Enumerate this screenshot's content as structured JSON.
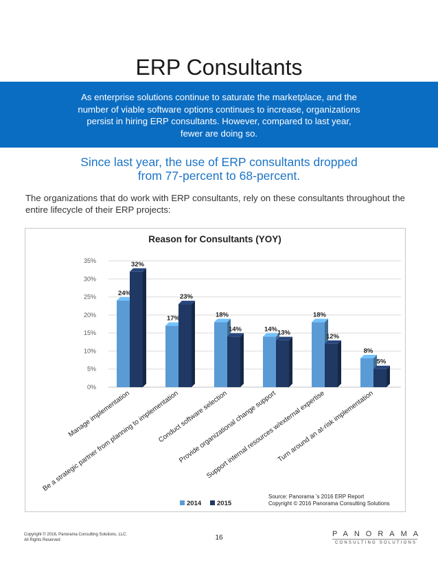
{
  "page": {
    "title": "ERP Consultants",
    "banner_lines": [
      "As enterprise solutions continue to saturate the marketplace, and the",
      "number of viable software options continues to increase, organizations",
      "persist in hiring ERP consultants. However, compared to last year,",
      "fewer are doing so."
    ],
    "subhead_lines": [
      "Since last year, the use of ERP consultants dropped",
      "from 77-percent to 68-percent."
    ],
    "paragraph": "The organizations that do work with ERP consultants, rely on these consultants throughout the entire lifecycle of their ERP projects:"
  },
  "chart_data": {
    "type": "bar",
    "title": "Reason for Consultants (YOY)",
    "categories": [
      "Manage implementation",
      "Be a strategic partner from planning to implementation",
      "Conduct software selection",
      "Provide organizational change support",
      "Support internal resources w/external expertise",
      "Turn around an at-risk implementation"
    ],
    "series": [
      {
        "name": "2014",
        "values": [
          24,
          17,
          18,
          14,
          18,
          8
        ],
        "color": "#5b9bd5"
      },
      {
        "name": "2015",
        "values": [
          32,
          23,
          14,
          13,
          12,
          5
        ],
        "color": "#1f3864"
      }
    ],
    "ylim": [
      0,
      35
    ],
    "yticks": [
      "0%",
      "5%",
      "10%",
      "15%",
      "20%",
      "25%",
      "30%",
      "35%"
    ],
    "value_suffix": "%",
    "grid": true,
    "legend_position": "bottom",
    "source_lines": [
      "Source: Panorama 's 2016 ERP Report",
      "Copyright © 2016 Panorama Consulting Solutions"
    ]
  },
  "footer": {
    "copyright_lines": [
      "Copyright © 2016, Panorama Consulting Solutions, LLC.",
      "All Rights Reserved"
    ],
    "page_number": "16",
    "logo_word": "PANORAMA",
    "logo_sub": "CONSULTING SOLUTIONS"
  }
}
